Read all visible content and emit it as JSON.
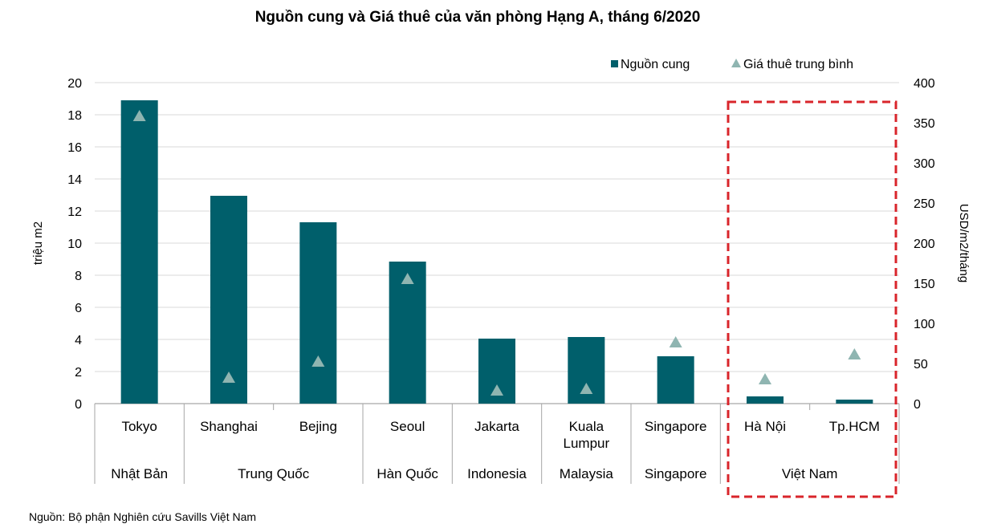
{
  "chart_data": {
    "type": "bar",
    "title": "Nguồn cung và Giá thuê của văn phòng Hạng A, tháng 6/2020",
    "ylabel_left": "triệu m2",
    "ylabel_right": "USD/m2/tháng",
    "ylim_left": [
      0,
      20
    ],
    "ylim_right": [
      0,
      400
    ],
    "yticks_left": [
      "0",
      "2",
      "4",
      "6",
      "8",
      "10",
      "12",
      "14",
      "16",
      "18",
      "20"
    ],
    "yticks_right": [
      "0",
      "50",
      "100",
      "150",
      "200",
      "250",
      "300",
      "350",
      "400"
    ],
    "categories": [
      [
        "Tokyo"
      ],
      [
        "Shanghai"
      ],
      [
        "Bejing"
      ],
      [
        "Seoul"
      ],
      [
        "Jakarta"
      ],
      [
        "Kuala",
        "Lumpur"
      ],
      [
        "Singapore"
      ],
      [
        "Hà Nội"
      ],
      [
        "Tp.HCM"
      ]
    ],
    "groups": [
      {
        "label": "Nhật Bản",
        "span": 1
      },
      {
        "label": "Trung Quốc",
        "span": 2
      },
      {
        "label": "Hàn Quốc",
        "span": 1
      },
      {
        "label": "Indonesia",
        "span": 1
      },
      {
        "label": "Malaysia",
        "span": 1
      },
      {
        "label": "Singapore",
        "span": 1
      },
      {
        "label": "Việt Nam",
        "span": 2
      }
    ],
    "series": [
      {
        "name": "Nguồn cung",
        "type": "bar",
        "axis": "left",
        "color": "#005f6b",
        "values": [
          18.9,
          12.95,
          11.3,
          8.85,
          4.05,
          4.15,
          2.95,
          0.45,
          0.25
        ]
      },
      {
        "name": "Giá thuê trung bình",
        "type": "marker",
        "marker": "triangle",
        "axis": "right",
        "color": "#8fb5b1",
        "values": [
          358,
          32,
          52,
          155,
          16,
          18,
          76,
          30,
          61
        ]
      }
    ],
    "legend_position": "top-right",
    "grid": true,
    "highlight_box": {
      "around": [
        "Hà Nội",
        "Tp.HCM"
      ],
      "style": "dashed",
      "color": "#d9252b"
    }
  },
  "source_note": "Nguồn: Bộ phận Nghiên cứu Savills Việt Nam"
}
